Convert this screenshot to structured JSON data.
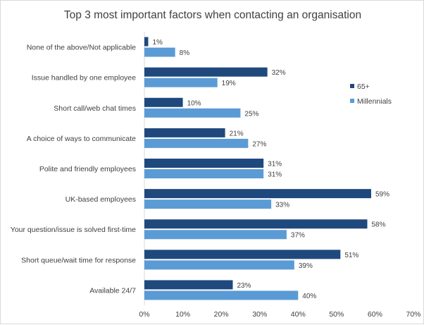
{
  "chart_data": {
    "type": "bar",
    "orientation": "horizontal",
    "title": "Top 3 most important factors when contacting an organisation",
    "categories": [
      "None of the above/Not applicable",
      "Issue handled by one employee",
      "Short call/web chat times",
      "A choice of ways to communicate",
      "Polite and friendly employees",
      "UK-based employees",
      "Your question/issue is solved first-time",
      "Short queue/wait time for response",
      "Available 24/7"
    ],
    "series": [
      {
        "name": "65+",
        "color": "#1f497d",
        "values": [
          1,
          32,
          10,
          21,
          31,
          59,
          58,
          51,
          23
        ]
      },
      {
        "name": "Millennials",
        "color": "#5b9bd5",
        "values": [
          8,
          19,
          25,
          27,
          31,
          33,
          37,
          39,
          40
        ]
      }
    ],
    "xlim": [
      0,
      70
    ],
    "xticks": [
      "0%",
      "10%",
      "20%",
      "30%",
      "40%",
      "50%",
      "60%",
      "70%"
    ],
    "value_suffix": "%",
    "legend_position": "right"
  }
}
